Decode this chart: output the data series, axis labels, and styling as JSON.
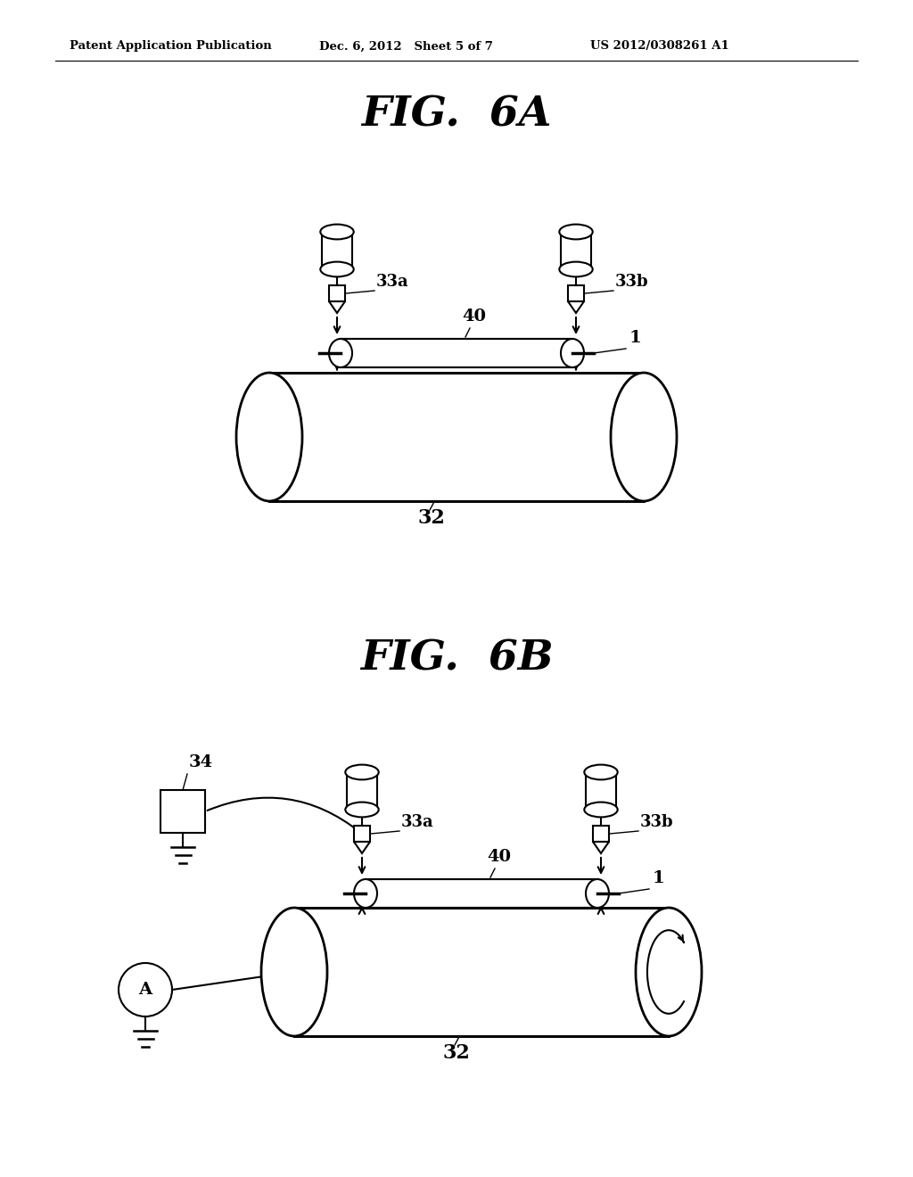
{
  "bg_color": "#ffffff",
  "line_color": "#000000",
  "header_left": "Patent Application Publication",
  "header_mid": "Dec. 6, 2012   Sheet 5 of 7",
  "header_right": "US 2012/0308261 A1",
  "fig6a_title": "FIG.  6A",
  "fig6b_title": "FIG.  6B",
  "label_33a": "33a",
  "label_33b": "33b",
  "label_40": "40",
  "label_1": "1",
  "label_32": "32",
  "label_34": "34",
  "label_A": "A"
}
